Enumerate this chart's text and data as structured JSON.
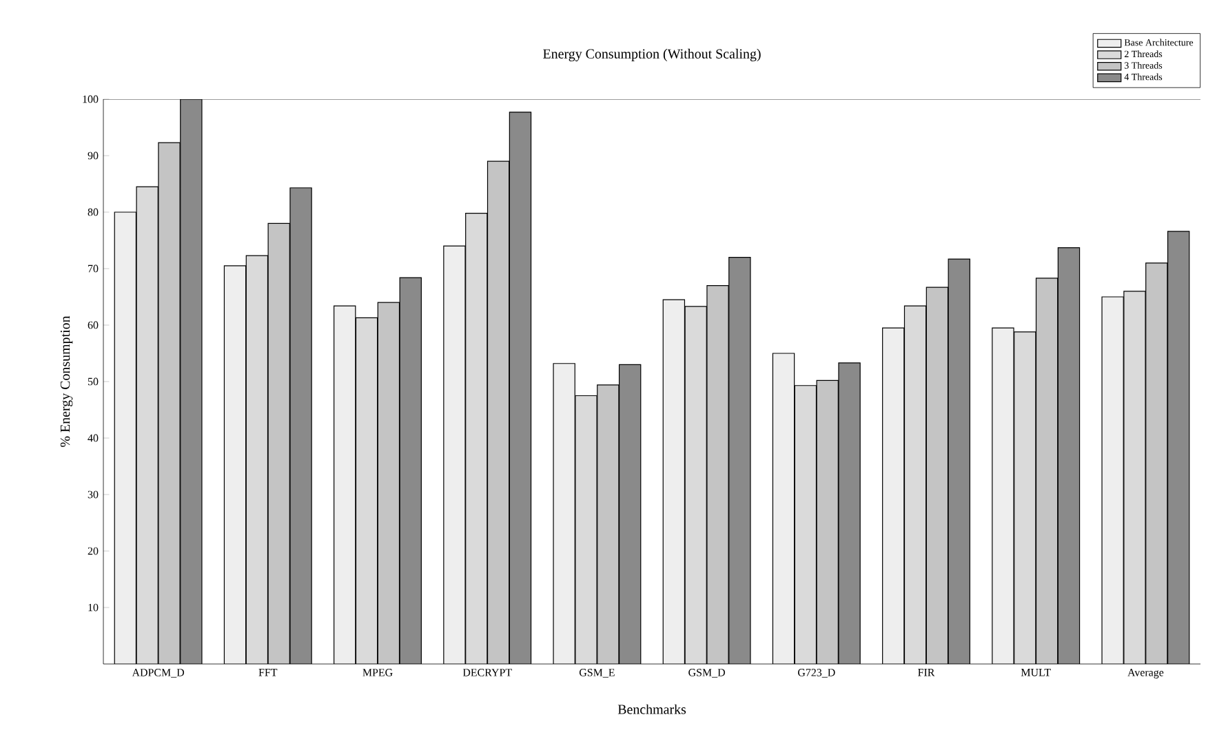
{
  "chart_data": {
    "type": "bar",
    "title": "Energy Consumption (Without Scaling)",
    "xlabel": "Benchmarks",
    "ylabel": "% Energy Consumption",
    "categories": [
      "ADPCM_D",
      "FFT",
      "MPEG",
      "DECRYPT",
      "GSM_E",
      "GSM_D",
      "G723_D",
      "FIR",
      "MULT",
      "Average"
    ],
    "series": [
      {
        "name": "Base Architecture",
        "color": "#eeeeee",
        "values": [
          80,
          70.5,
          63.4,
          74,
          53.2,
          64.5,
          55,
          59.5,
          59.5,
          65
        ]
      },
      {
        "name": "2 Threads",
        "color": "#dadada",
        "values": [
          84.5,
          72.3,
          61.3,
          79.8,
          47.5,
          63.3,
          49.3,
          63.4,
          58.8,
          66
        ]
      },
      {
        "name": "3 Threads",
        "color": "#c4c4c4",
        "values": [
          92.3,
          78,
          64,
          89,
          49.4,
          67,
          50.2,
          66.7,
          68.3,
          71
        ]
      },
      {
        "name": "4 Threads",
        "color": "#8a8a8a",
        "values": [
          100,
          84.3,
          68.4,
          97.7,
          53,
          72,
          53.3,
          71.7,
          73.7,
          76.6
        ]
      }
    ],
    "ylim": [
      0,
      100
    ],
    "yticks": [
      10,
      20,
      30,
      40,
      50,
      60,
      70,
      80,
      90,
      100
    ],
    "legend": "top right",
    "grid": false
  }
}
